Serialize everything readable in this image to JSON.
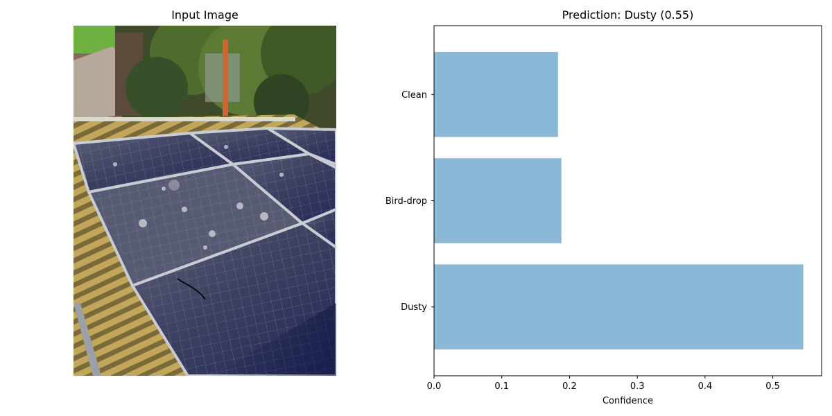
{
  "left_panel": {
    "title": "Input Image"
  },
  "chart_data": {
    "type": "bar",
    "orientation": "horizontal",
    "title": "Prediction: Dusty (0.55)",
    "categories": [
      "Dusty",
      "Bird-drop",
      "Clean"
    ],
    "values": [
      0.545,
      0.188,
      0.183
    ],
    "xlabel": "Confidence",
    "ylabel": "",
    "xlim": [
      0,
      0.572
    ],
    "xticks": [
      "0.0",
      "0.1",
      "0.2",
      "0.3",
      "0.4",
      "0.5"
    ],
    "grid": false,
    "bar_color": "#8cb8d8"
  }
}
